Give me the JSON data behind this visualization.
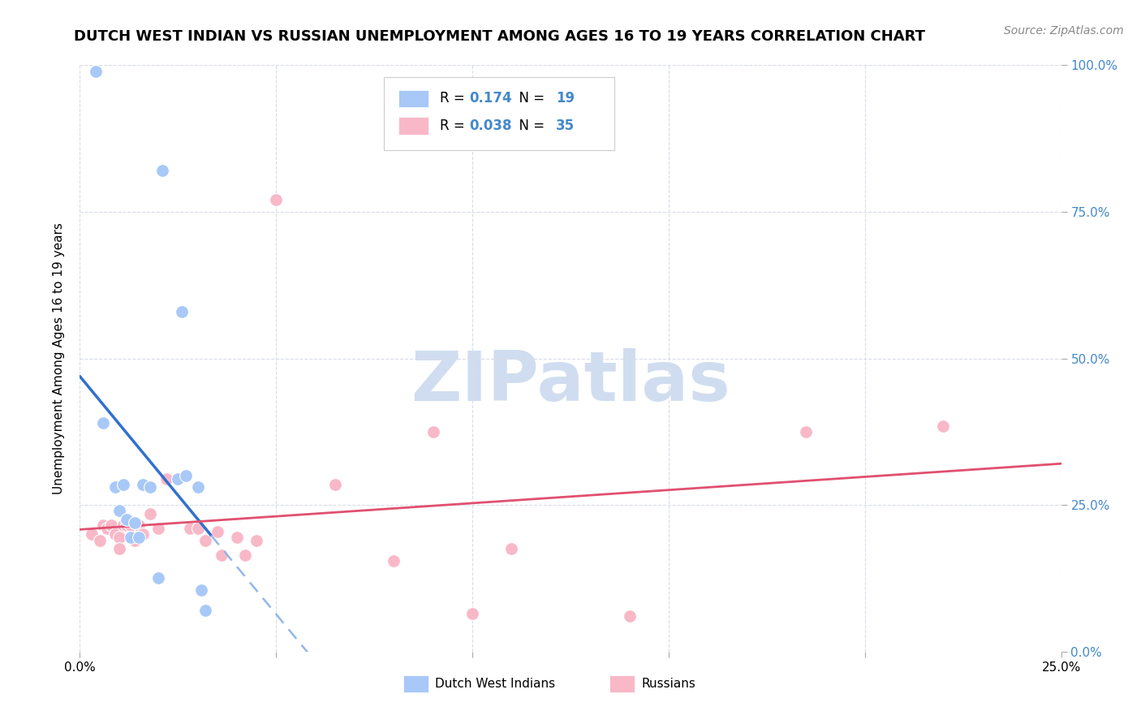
{
  "title": "DUTCH WEST INDIAN VS RUSSIAN UNEMPLOYMENT AMONG AGES 16 TO 19 YEARS CORRELATION CHART",
  "source": "Source: ZipAtlas.com",
  "ylabel": "Unemployment Among Ages 16 to 19 years",
  "xlim": [
    0.0,
    0.25
  ],
  "ylim": [
    0.0,
    1.0
  ],
  "xticks": [
    0.0,
    0.05,
    0.1,
    0.15,
    0.2,
    0.25
  ],
  "yticks": [
    0.0,
    0.25,
    0.5,
    0.75,
    1.0
  ],
  "xtick_labels": [
    "0.0%",
    "",
    "",
    "",
    "",
    "25.0%"
  ],
  "ytick_labels_right": [
    "0.0%",
    "25.0%",
    "50.0%",
    "75.0%",
    "100.0%"
  ],
  "dwi_label": "Dutch West Indians",
  "rus_label": "Russians",
  "dwi_R": "0.174",
  "dwi_N": "19",
  "rus_R": "0.038",
  "rus_N": "35",
  "dwi_color": "#a8c8f8",
  "rus_color": "#f8b8c8",
  "dwi_line_color": "#3070d0",
  "rus_line_color": "#e05070",
  "dwi_line_dash_color": "#90b8e8",
  "background_color": "#ffffff",
  "grid_color": "#d8dce8",
  "watermark": "ZIPatlas",
  "watermark_color": "#d0ddf0",
  "dwi_x": [
    0.004,
    0.006,
    0.009,
    0.01,
    0.011,
    0.012,
    0.013,
    0.014,
    0.015,
    0.016,
    0.018,
    0.02,
    0.021,
    0.025,
    0.026,
    0.027,
    0.03,
    0.031,
    0.032
  ],
  "dwi_y": [
    0.99,
    0.39,
    0.28,
    0.24,
    0.285,
    0.225,
    0.195,
    0.22,
    0.195,
    0.285,
    0.28,
    0.125,
    0.82,
    0.295,
    0.58,
    0.3,
    0.28,
    0.105,
    0.07
  ],
  "rus_x": [
    0.003,
    0.005,
    0.006,
    0.007,
    0.008,
    0.009,
    0.01,
    0.01,
    0.011,
    0.012,
    0.013,
    0.014,
    0.015,
    0.015,
    0.016,
    0.018,
    0.02,
    0.022,
    0.028,
    0.03,
    0.032,
    0.035,
    0.036,
    0.04,
    0.042,
    0.045,
    0.05,
    0.065,
    0.08,
    0.09,
    0.1,
    0.11,
    0.14,
    0.185,
    0.22
  ],
  "rus_y": [
    0.2,
    0.19,
    0.215,
    0.21,
    0.215,
    0.2,
    0.195,
    0.175,
    0.215,
    0.215,
    0.215,
    0.19,
    0.215,
    0.215,
    0.2,
    0.235,
    0.21,
    0.295,
    0.21,
    0.21,
    0.19,
    0.205,
    0.165,
    0.195,
    0.165,
    0.19,
    0.77,
    0.285,
    0.155,
    0.375,
    0.065,
    0.175,
    0.06,
    0.375,
    0.385
  ],
  "title_fontsize": 13,
  "axis_label_fontsize": 11,
  "tick_fontsize": 11,
  "source_fontsize": 10,
  "marker_size": 130,
  "right_ytick_color": "#4488cc",
  "legend_R_color": "#4488cc",
  "legend_N_color": "#4488cc"
}
